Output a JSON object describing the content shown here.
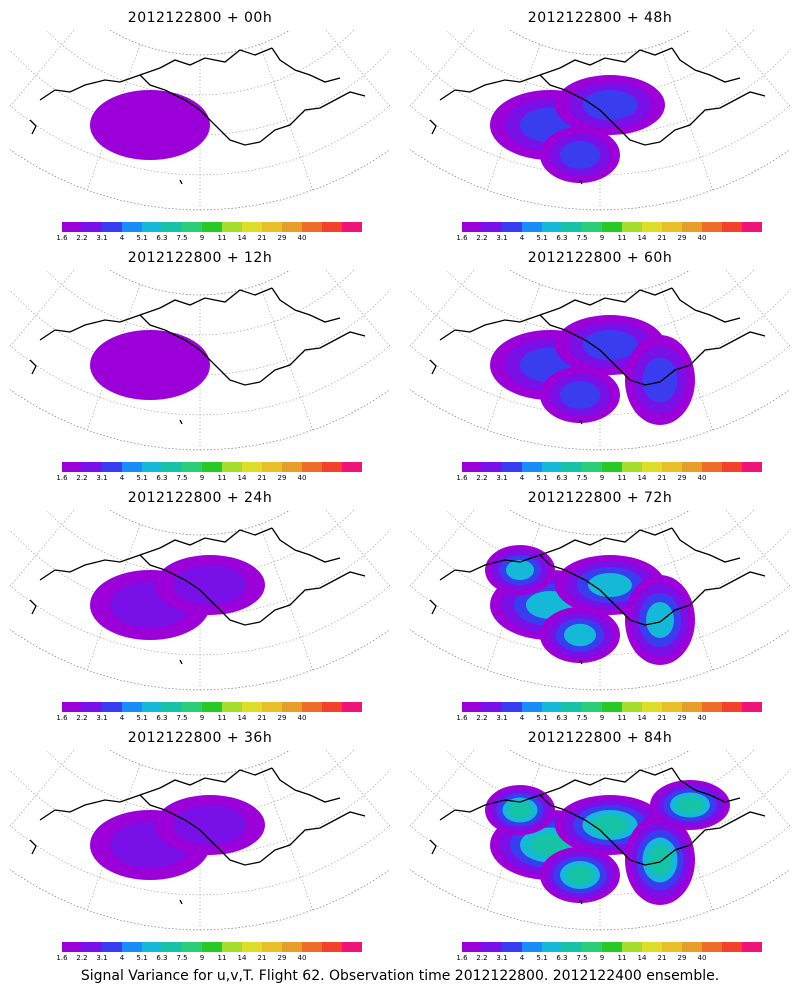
{
  "colorbar": {
    "colors": [
      "#9b00d8",
      "#7a10e8",
      "#3a3cf0",
      "#1b8df8",
      "#16b8d8",
      "#17c3a7",
      "#2bcd7a",
      "#26c926",
      "#a5de2a",
      "#dede2a",
      "#e8c02a",
      "#e89d2a",
      "#ef6b2a",
      "#f2432a",
      "#ef1478"
    ],
    "labels": [
      "1.6",
      "2.2",
      "3.1",
      "4",
      "5.1",
      "6.3",
      "7.5",
      "9",
      "11",
      "14",
      "21",
      "29",
      "40"
    ]
  },
  "panels": [
    {
      "title": "2012122800 + 00h",
      "intensity": 0.05
    },
    {
      "title": "2012122800 + 48h",
      "intensity": 0.45
    },
    {
      "title": "2012122800 + 12h",
      "intensity": 0.12
    },
    {
      "title": "2012122800 + 60h",
      "intensity": 0.55
    },
    {
      "title": "2012122800 + 24h",
      "intensity": 0.25
    },
    {
      "title": "2012122800 + 72h",
      "intensity": 0.7
    },
    {
      "title": "2012122800 + 36h",
      "intensity": 0.35
    },
    {
      "title": "2012122800 + 84h",
      "intensity": 0.85
    }
  ],
  "footer": "Signal Variance for u,v,T. Flight 62. Observation time 2012122800. 2012122400 ensemble."
}
